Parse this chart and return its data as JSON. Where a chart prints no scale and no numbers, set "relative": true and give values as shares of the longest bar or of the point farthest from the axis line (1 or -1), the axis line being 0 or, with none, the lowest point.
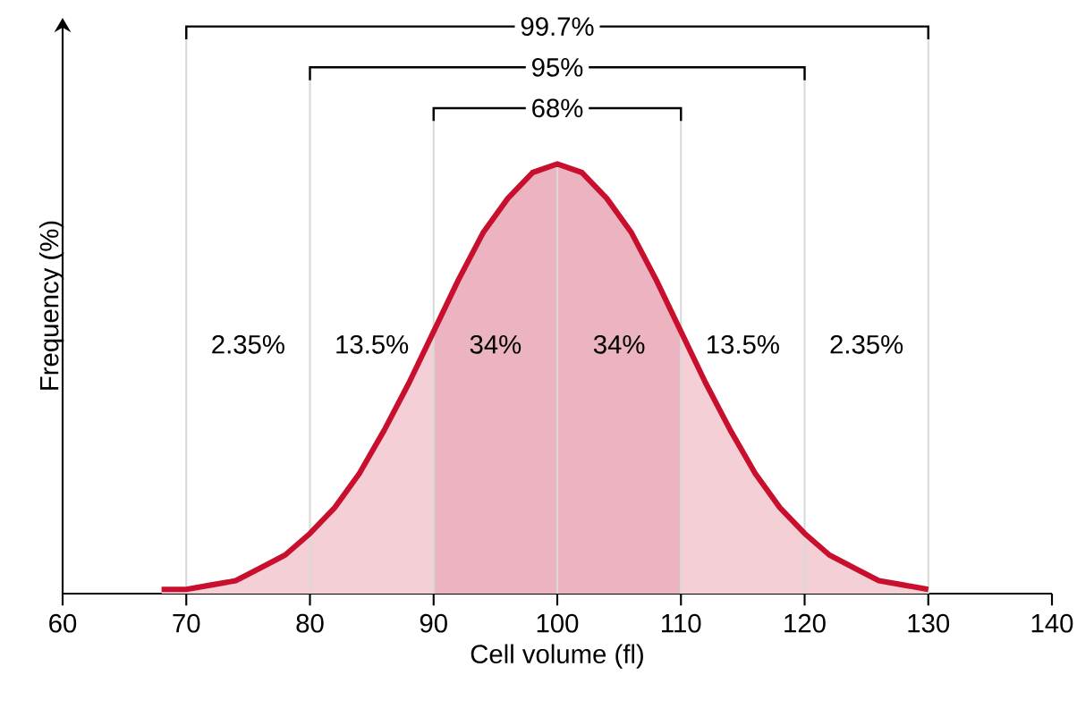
{
  "chart_data": {
    "type": "area",
    "xlabel": "Cell volume (fl)",
    "ylabel": "Frequency (%)",
    "relative": true,
    "color": "#c8102e",
    "x": [
      68,
      70,
      72,
      74,
      76,
      78,
      80,
      82,
      84,
      86,
      88,
      90,
      92,
      94,
      96,
      98,
      100,
      102,
      104,
      106,
      108,
      110,
      112,
      114,
      116,
      118,
      120,
      122,
      124,
      126,
      128,
      130
    ],
    "values": [
      0.01,
      0.01,
      0.02,
      0.03,
      0.06,
      0.09,
      0.14,
      0.2,
      0.28,
      0.38,
      0.49,
      0.61,
      0.73,
      0.84,
      0.92,
      0.98,
      1,
      0.98,
      0.92,
      0.84,
      0.73,
      0.61,
      0.49,
      0.38,
      0.28,
      0.2,
      0.14,
      0.09,
      0.06,
      0.03,
      0.02,
      0.01
    ],
    "xlim": [
      60,
      140
    ],
    "xticks": [
      60,
      70,
      80,
      90,
      100,
      110,
      120,
      130,
      140
    ],
    "bands": [
      {
        "axis": "x",
        "from": 90,
        "to": 110,
        "color": "#ebb4c0"
      }
    ],
    "ref_lines": [
      {
        "axis": "x",
        "value": 70,
        "color": "#d9d9d9"
      },
      {
        "axis": "x",
        "value": 80,
        "color": "#d9d9d9"
      },
      {
        "axis": "x",
        "value": 90,
        "color": "#d9d9d9"
      },
      {
        "axis": "x",
        "value": 100,
        "color": "#d9d9d9"
      },
      {
        "axis": "x",
        "value": 110,
        "color": "#d9d9d9"
      },
      {
        "axis": "x",
        "value": 120,
        "color": "#d9d9d9"
      },
      {
        "axis": "x",
        "value": 130,
        "color": "#d9d9d9"
      }
    ],
    "annotations": [
      "99.7%",
      "95%",
      "68%",
      "2.35%",
      "13.5%",
      "34%",
      "34%",
      "13.5%",
      "2.35%"
    ]
  }
}
